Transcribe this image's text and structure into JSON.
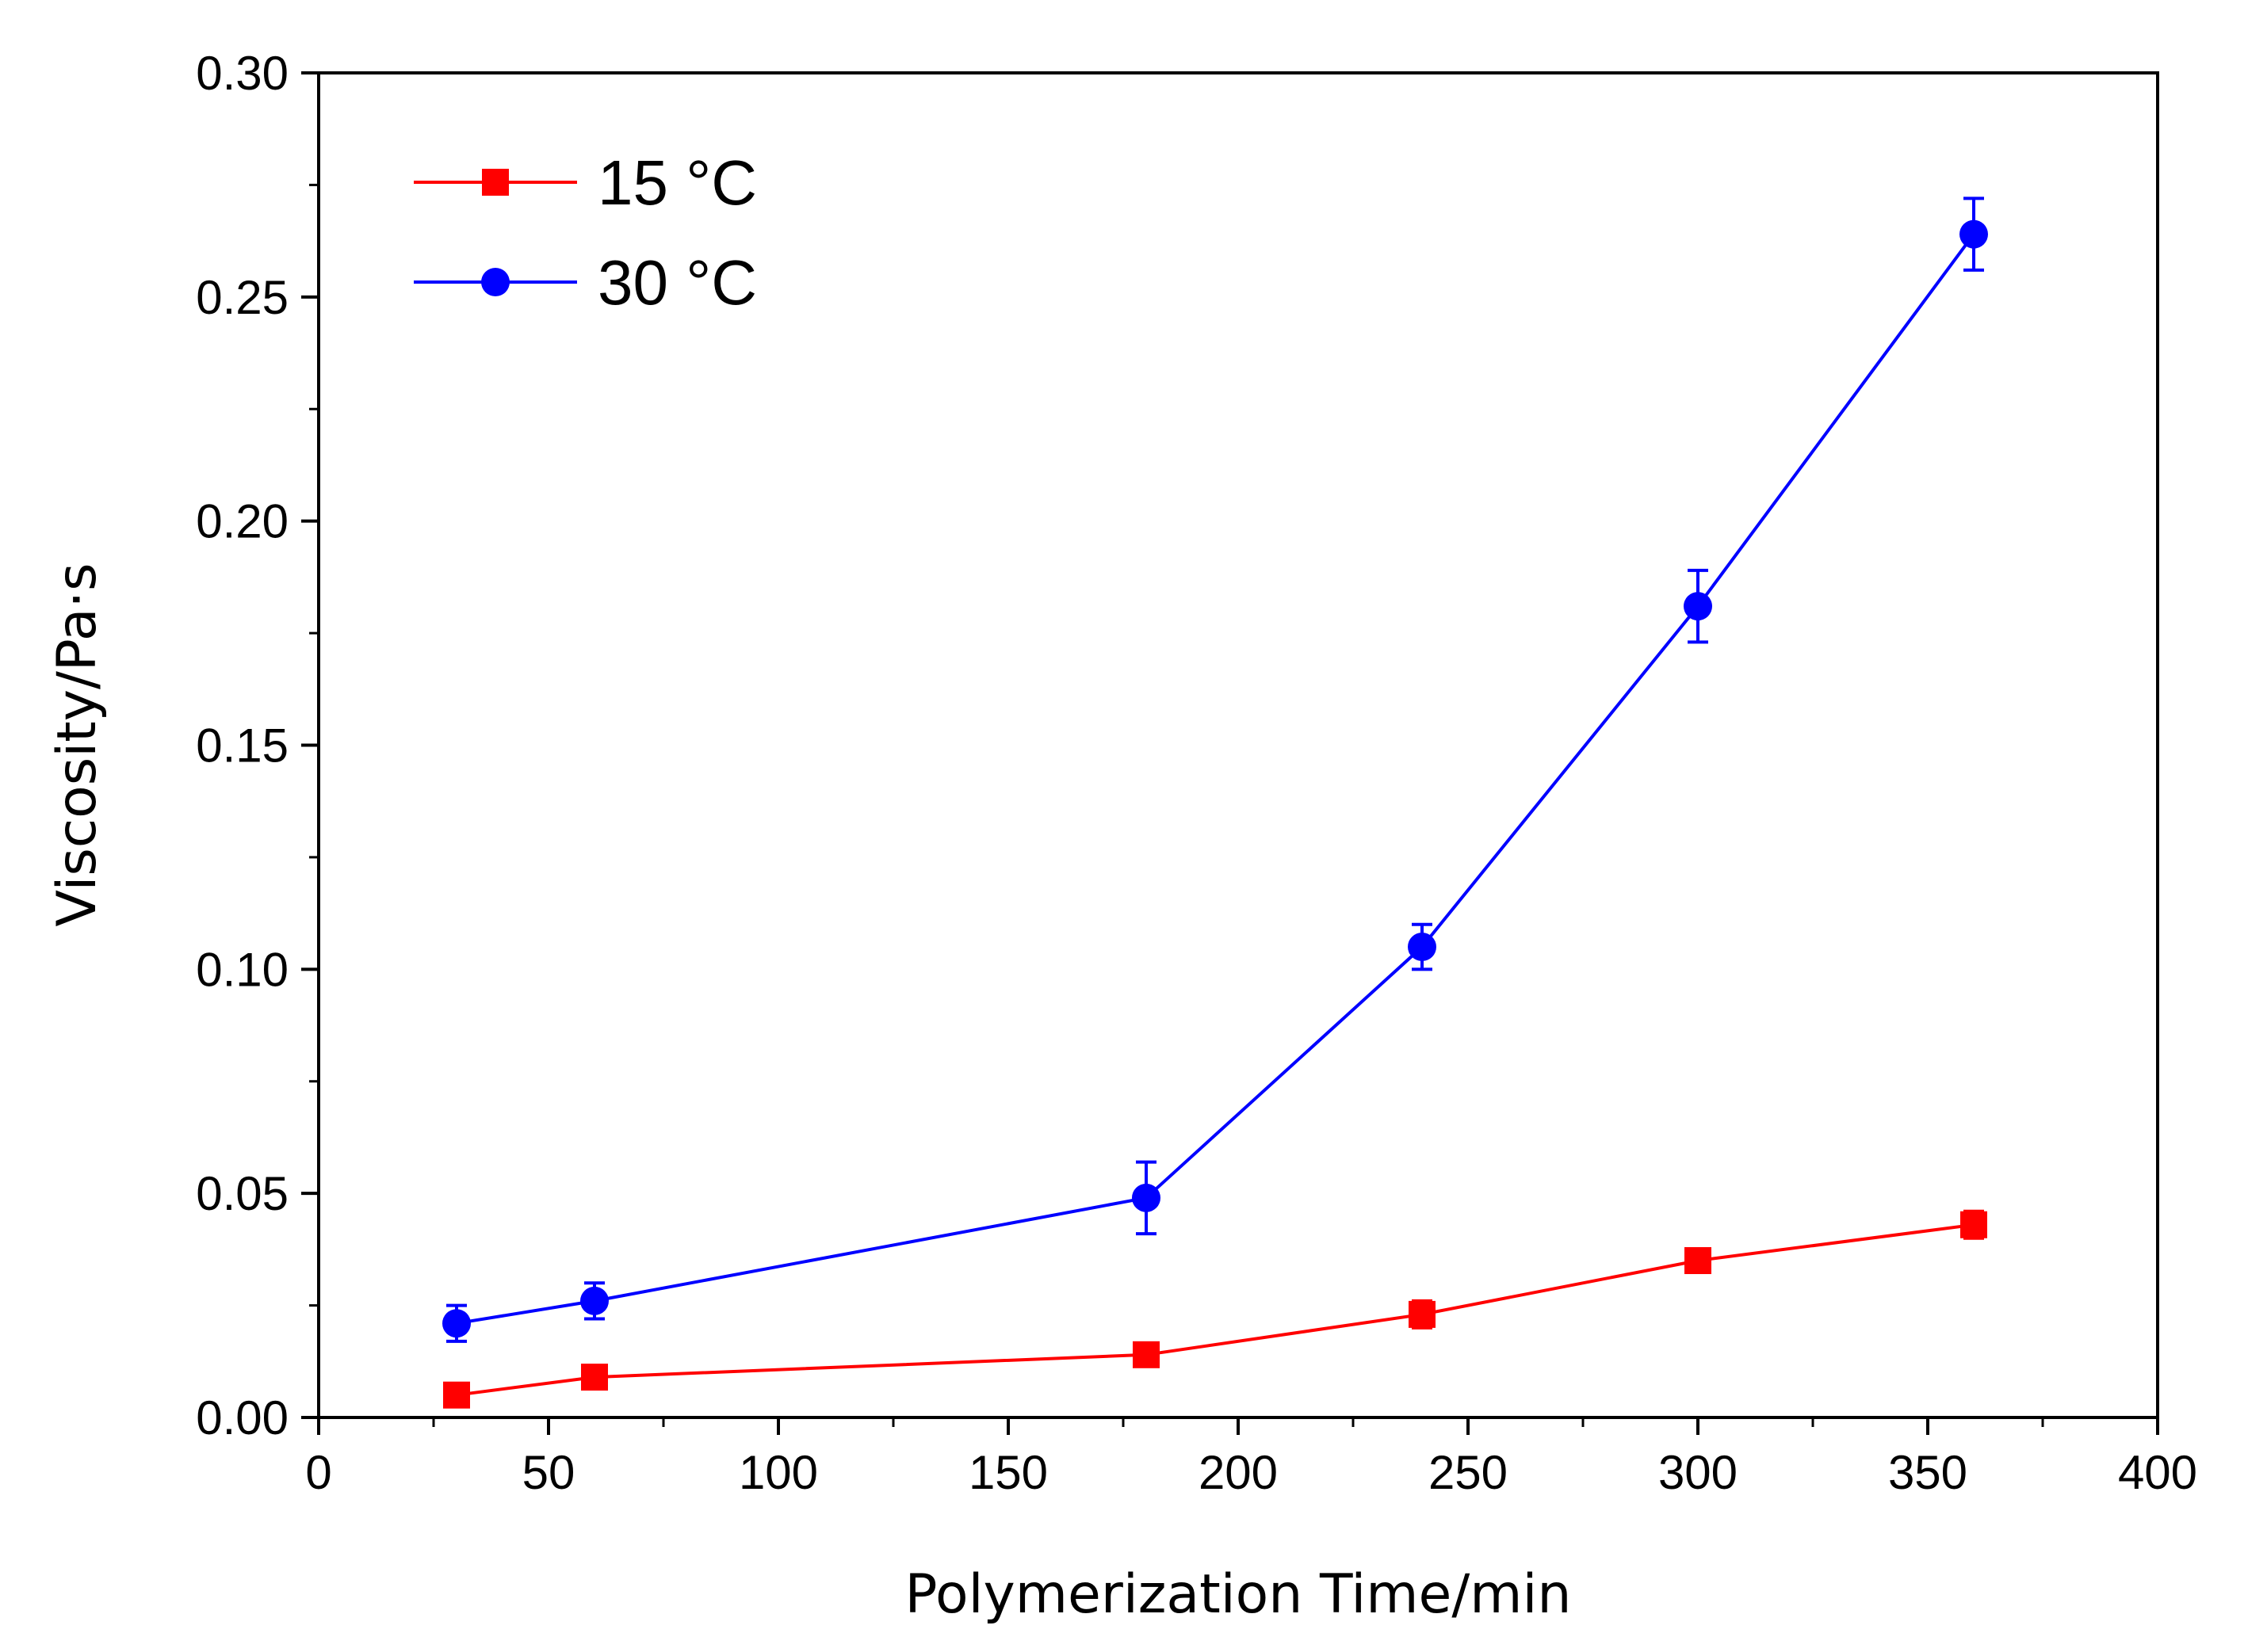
{
  "chart_data": {
    "type": "line",
    "title": "",
    "xlabel": "Polymerization Time/min",
    "ylabel": "Viscosity/Pa·s",
    "xlim": [
      0,
      400
    ],
    "ylim": [
      0,
      0.3
    ],
    "xticks": [
      0,
      50,
      100,
      150,
      200,
      250,
      300,
      350,
      400
    ],
    "xtick_labels": [
      "0",
      "50",
      "100",
      "150",
      "200",
      "250",
      "300",
      "350",
      "400"
    ],
    "yticks": [
      0,
      0.05,
      0.1,
      0.15,
      0.2,
      0.25,
      0.3
    ],
    "ytick_labels": [
      "0.00",
      "0.05",
      "0.10",
      "0.15",
      "0.20",
      "0.25",
      "0.30"
    ],
    "grid": false,
    "legend_position": "top-left",
    "series": [
      {
        "name": "15 °C",
        "color": "#ff0000",
        "marker": "square",
        "x": [
          30,
          60,
          180,
          240,
          300,
          360
        ],
        "y": [
          0.005,
          0.009,
          0.014,
          0.023,
          0.035,
          0.043
        ],
        "error": [
          0.002,
          0.002,
          0.002,
          0.003,
          0.002,
          0.003
        ]
      },
      {
        "name": "30 °C",
        "color": "#0000ff",
        "marker": "circle",
        "x": [
          30,
          60,
          180,
          240,
          300,
          360
        ],
        "y": [
          0.021,
          0.026,
          0.049,
          0.105,
          0.181,
          0.264
        ],
        "error": [
          0.004,
          0.004,
          0.008,
          0.005,
          0.008,
          0.008
        ]
      }
    ]
  }
}
